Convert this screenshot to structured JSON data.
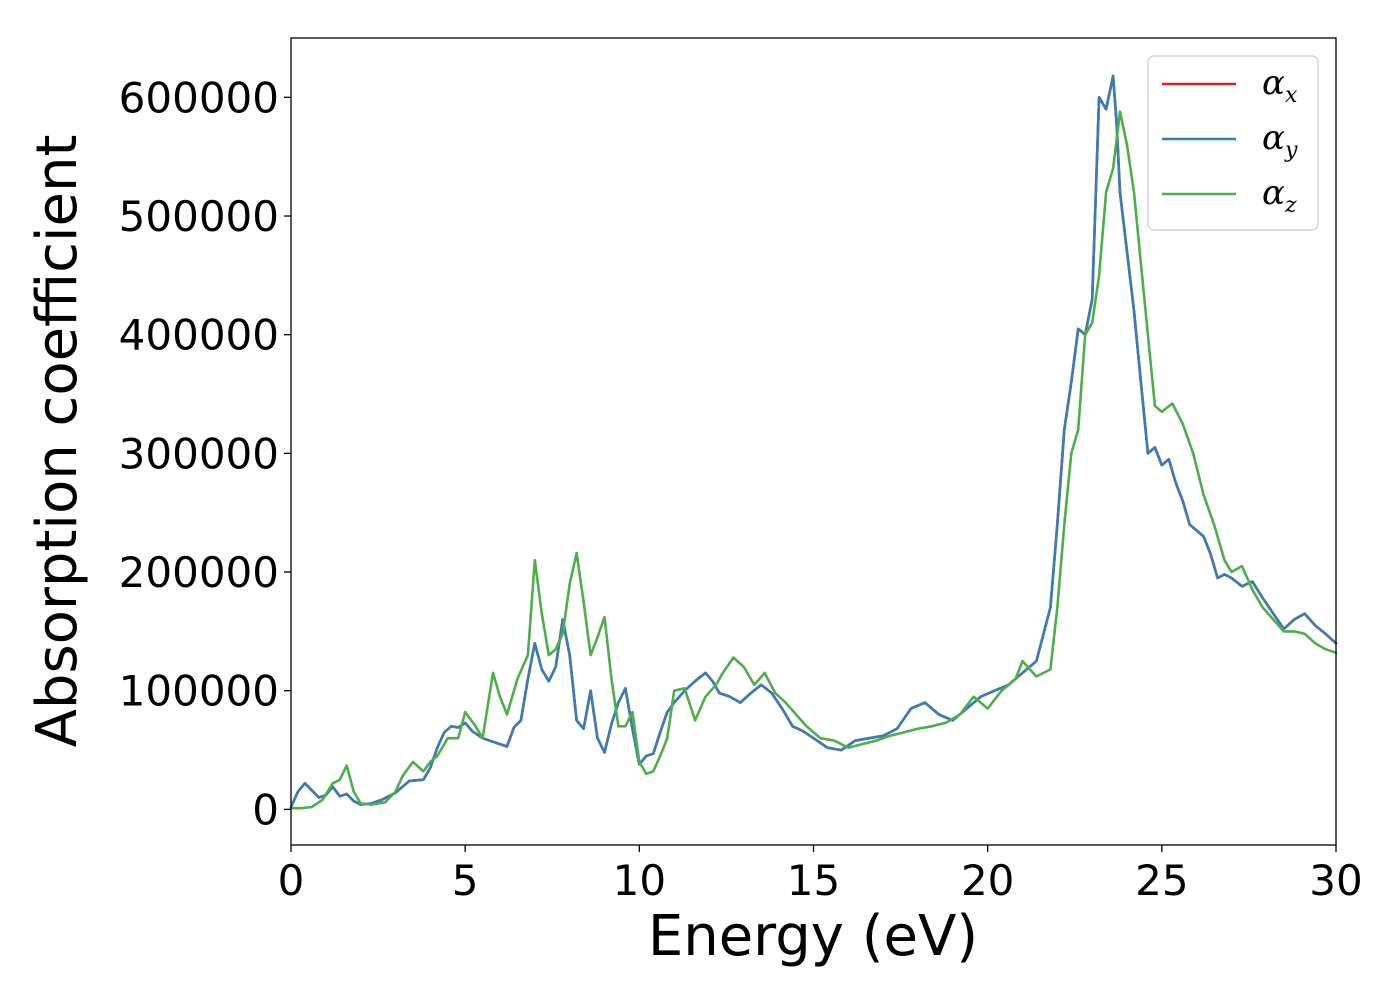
{
  "chart_data": {
    "type": "line",
    "xlabel": "Energy (eV)",
    "ylabel": "Absorption coefficient",
    "xlim": [
      0,
      30
    ],
    "ylim": [
      -30000,
      650000
    ],
    "x_ticks": [
      "0",
      "5",
      "10",
      "15",
      "20",
      "25",
      "30"
    ],
    "y_ticks": [
      "0",
      "100000",
      "200000",
      "300000",
      "400000",
      "500000",
      "600000"
    ],
    "grid": false,
    "legend_position": "top-right",
    "series": [
      {
        "name": "α",
        "subscript": "x",
        "color": "#e41a1c",
        "x": [
          0,
          0.2,
          0.4,
          0.6,
          0.8,
          1.0,
          1.2,
          1.4,
          1.6,
          1.8,
          2.0,
          2.3,
          2.6,
          3.0,
          3.4,
          3.8,
          4.0,
          4.2,
          4.4,
          4.6,
          4.8,
          5.0,
          5.2,
          5.5,
          5.8,
          6.0,
          6.2,
          6.4,
          6.6,
          6.8,
          7.0,
          7.2,
          7.4,
          7.6,
          7.8,
          8.0,
          8.2,
          8.4,
          8.6,
          8.8,
          9.0,
          9.2,
          9.4,
          9.6,
          9.8,
          10.0,
          10.2,
          10.4,
          10.6,
          10.8,
          11.0,
          11.3,
          11.6,
          11.9,
          12.1,
          12.3,
          12.6,
          12.9,
          13.2,
          13.5,
          13.8,
          14.1,
          14.4,
          14.7,
          15.0,
          15.4,
          15.8,
          16.2,
          16.6,
          17.0,
          17.4,
          17.8,
          18.2,
          18.6,
          19.0,
          19.4,
          19.8,
          20.2,
          20.6,
          21.0,
          21.4,
          21.8,
          22.0,
          22.2,
          22.4,
          22.6,
          22.8,
          23.0,
          23.2,
          23.4,
          23.6,
          23.7,
          23.8,
          24.0,
          24.2,
          24.4,
          24.6,
          24.8,
          25.0,
          25.2,
          25.4,
          25.6,
          25.8,
          26.0,
          26.2,
          26.4,
          26.6,
          26.8,
          27.0,
          27.3,
          27.6,
          27.9,
          28.2,
          28.5,
          28.8,
          29.1,
          29.4,
          29.7,
          30.0
        ],
        "y": [
          2000,
          15000,
          22000,
          16000,
          10000,
          12000,
          19000,
          11000,
          13000,
          7000,
          4000,
          5000,
          8000,
          14000,
          24000,
          25000,
          35000,
          52000,
          65000,
          70000,
          69000,
          73000,
          66000,
          60000,
          57000,
          55000,
          53000,
          69000,
          75000,
          110000,
          140000,
          118000,
          108000,
          120000,
          160000,
          130000,
          75000,
          68000,
          100000,
          60000,
          48000,
          72000,
          90000,
          102000,
          68000,
          38000,
          45000,
          47000,
          65000,
          82000,
          90000,
          100000,
          108000,
          115000,
          108000,
          98000,
          95000,
          90000,
          98000,
          105000,
          98000,
          85000,
          70000,
          66000,
          60000,
          52000,
          50000,
          58000,
          60000,
          62000,
          68000,
          85000,
          90000,
          80000,
          75000,
          85000,
          95000,
          100000,
          105000,
          115000,
          125000,
          170000,
          240000,
          320000,
          360000,
          405000,
          400000,
          430000,
          600000,
          590000,
          618000,
          580000,
          520000,
          470000,
          420000,
          360000,
          300000,
          305000,
          290000,
          295000,
          275000,
          260000,
          240000,
          235000,
          230000,
          215000,
          195000,
          198000,
          195000,
          188000,
          192000,
          178000,
          165000,
          152000,
          160000,
          165000,
          155000,
          148000,
          140000
        ]
      },
      {
        "name": "α",
        "subscript": "y",
        "color": "#377eb8",
        "x": [
          0,
          0.2,
          0.4,
          0.6,
          0.8,
          1.0,
          1.2,
          1.4,
          1.6,
          1.8,
          2.0,
          2.3,
          2.6,
          3.0,
          3.4,
          3.8,
          4.0,
          4.2,
          4.4,
          4.6,
          4.8,
          5.0,
          5.2,
          5.5,
          5.8,
          6.0,
          6.2,
          6.4,
          6.6,
          6.8,
          7.0,
          7.2,
          7.4,
          7.6,
          7.8,
          8.0,
          8.2,
          8.4,
          8.6,
          8.8,
          9.0,
          9.2,
          9.4,
          9.6,
          9.8,
          10.0,
          10.2,
          10.4,
          10.6,
          10.8,
          11.0,
          11.3,
          11.6,
          11.9,
          12.1,
          12.3,
          12.6,
          12.9,
          13.2,
          13.5,
          13.8,
          14.1,
          14.4,
          14.7,
          15.0,
          15.4,
          15.8,
          16.2,
          16.6,
          17.0,
          17.4,
          17.8,
          18.2,
          18.6,
          19.0,
          19.4,
          19.8,
          20.2,
          20.6,
          21.0,
          21.4,
          21.8,
          22.0,
          22.2,
          22.4,
          22.6,
          22.8,
          23.0,
          23.2,
          23.4,
          23.6,
          23.7,
          23.8,
          24.0,
          24.2,
          24.4,
          24.6,
          24.8,
          25.0,
          25.2,
          25.4,
          25.6,
          25.8,
          26.0,
          26.2,
          26.4,
          26.6,
          26.8,
          27.0,
          27.3,
          27.6,
          27.9,
          28.2,
          28.5,
          28.8,
          29.1,
          29.4,
          29.7,
          30.0
        ],
        "y": [
          2000,
          15000,
          22000,
          16000,
          10000,
          12000,
          19000,
          11000,
          13000,
          7000,
          4000,
          5000,
          8000,
          14000,
          24000,
          25000,
          35000,
          52000,
          65000,
          70000,
          69000,
          73000,
          66000,
          60000,
          57000,
          55000,
          53000,
          69000,
          75000,
          110000,
          140000,
          118000,
          108000,
          120000,
          160000,
          130000,
          75000,
          68000,
          100000,
          60000,
          48000,
          72000,
          90000,
          102000,
          68000,
          38000,
          45000,
          47000,
          65000,
          82000,
          90000,
          100000,
          108000,
          115000,
          108000,
          98000,
          95000,
          90000,
          98000,
          105000,
          98000,
          85000,
          70000,
          66000,
          60000,
          52000,
          50000,
          58000,
          60000,
          62000,
          68000,
          85000,
          90000,
          80000,
          75000,
          85000,
          95000,
          100000,
          105000,
          115000,
          125000,
          170000,
          240000,
          320000,
          360000,
          405000,
          400000,
          430000,
          600000,
          590000,
          618000,
          580000,
          520000,
          470000,
          420000,
          360000,
          300000,
          305000,
          290000,
          295000,
          275000,
          260000,
          240000,
          235000,
          230000,
          215000,
          195000,
          198000,
          195000,
          188000,
          192000,
          178000,
          165000,
          152000,
          160000,
          165000,
          155000,
          148000,
          140000
        ]
      },
      {
        "name": "α",
        "subscript": "z",
        "color": "#4daf4a",
        "x": [
          0,
          0.3,
          0.6,
          0.9,
          1.2,
          1.4,
          1.6,
          1.8,
          2.0,
          2.3,
          2.7,
          3.0,
          3.2,
          3.5,
          3.8,
          4.0,
          4.2,
          4.5,
          4.8,
          5.0,
          5.3,
          5.5,
          5.8,
          6.0,
          6.2,
          6.5,
          6.8,
          7.0,
          7.2,
          7.4,
          7.6,
          7.8,
          8.0,
          8.2,
          8.4,
          8.6,
          8.8,
          9.0,
          9.2,
          9.4,
          9.6,
          9.8,
          10.0,
          10.2,
          10.4,
          10.6,
          10.8,
          11.0,
          11.3,
          11.6,
          11.9,
          12.2,
          12.4,
          12.7,
          13.0,
          13.3,
          13.6,
          13.9,
          14.2,
          14.5,
          14.8,
          15.2,
          15.6,
          16.0,
          16.4,
          16.8,
          17.2,
          17.6,
          18.0,
          18.4,
          18.8,
          19.2,
          19.6,
          20.0,
          20.4,
          20.8,
          21.0,
          21.4,
          21.8,
          22.0,
          22.2,
          22.4,
          22.6,
          22.8,
          23.0,
          23.2,
          23.4,
          23.6,
          23.8,
          24.0,
          24.2,
          24.4,
          24.6,
          24.8,
          25.0,
          25.3,
          25.6,
          25.9,
          26.2,
          26.5,
          26.8,
          27.0,
          27.3,
          27.6,
          27.9,
          28.2,
          28.5,
          28.8,
          29.1,
          29.4,
          29.7,
          30.0
        ],
        "y": [
          1000,
          1000,
          2000,
          8000,
          22000,
          25000,
          37000,
          15000,
          5000,
          4000,
          6000,
          15000,
          28000,
          40000,
          32000,
          40000,
          45000,
          60000,
          60000,
          82000,
          70000,
          60000,
          115000,
          95000,
          80000,
          110000,
          130000,
          210000,
          165000,
          130000,
          135000,
          148000,
          190000,
          216000,
          175000,
          130000,
          145000,
          162000,
          110000,
          70000,
          70000,
          82000,
          40000,
          30000,
          32000,
          45000,
          60000,
          100000,
          102000,
          75000,
          95000,
          105000,
          115000,
          128000,
          120000,
          105000,
          115000,
          98000,
          90000,
          80000,
          70000,
          60000,
          58000,
          52000,
          55000,
          58000,
          62000,
          65000,
          68000,
          70000,
          73000,
          80000,
          95000,
          85000,
          100000,
          110000,
          125000,
          112000,
          118000,
          170000,
          240000,
          300000,
          320000,
          400000,
          410000,
          450000,
          520000,
          540000,
          588000,
          560000,
          520000,
          460000,
          400000,
          340000,
          335000,
          342000,
          325000,
          300000,
          265000,
          240000,
          210000,
          200000,
          205000,
          185000,
          170000,
          160000,
          150000,
          150000,
          148000,
          140000,
          135000,
          132000
        ]
      }
    ]
  }
}
